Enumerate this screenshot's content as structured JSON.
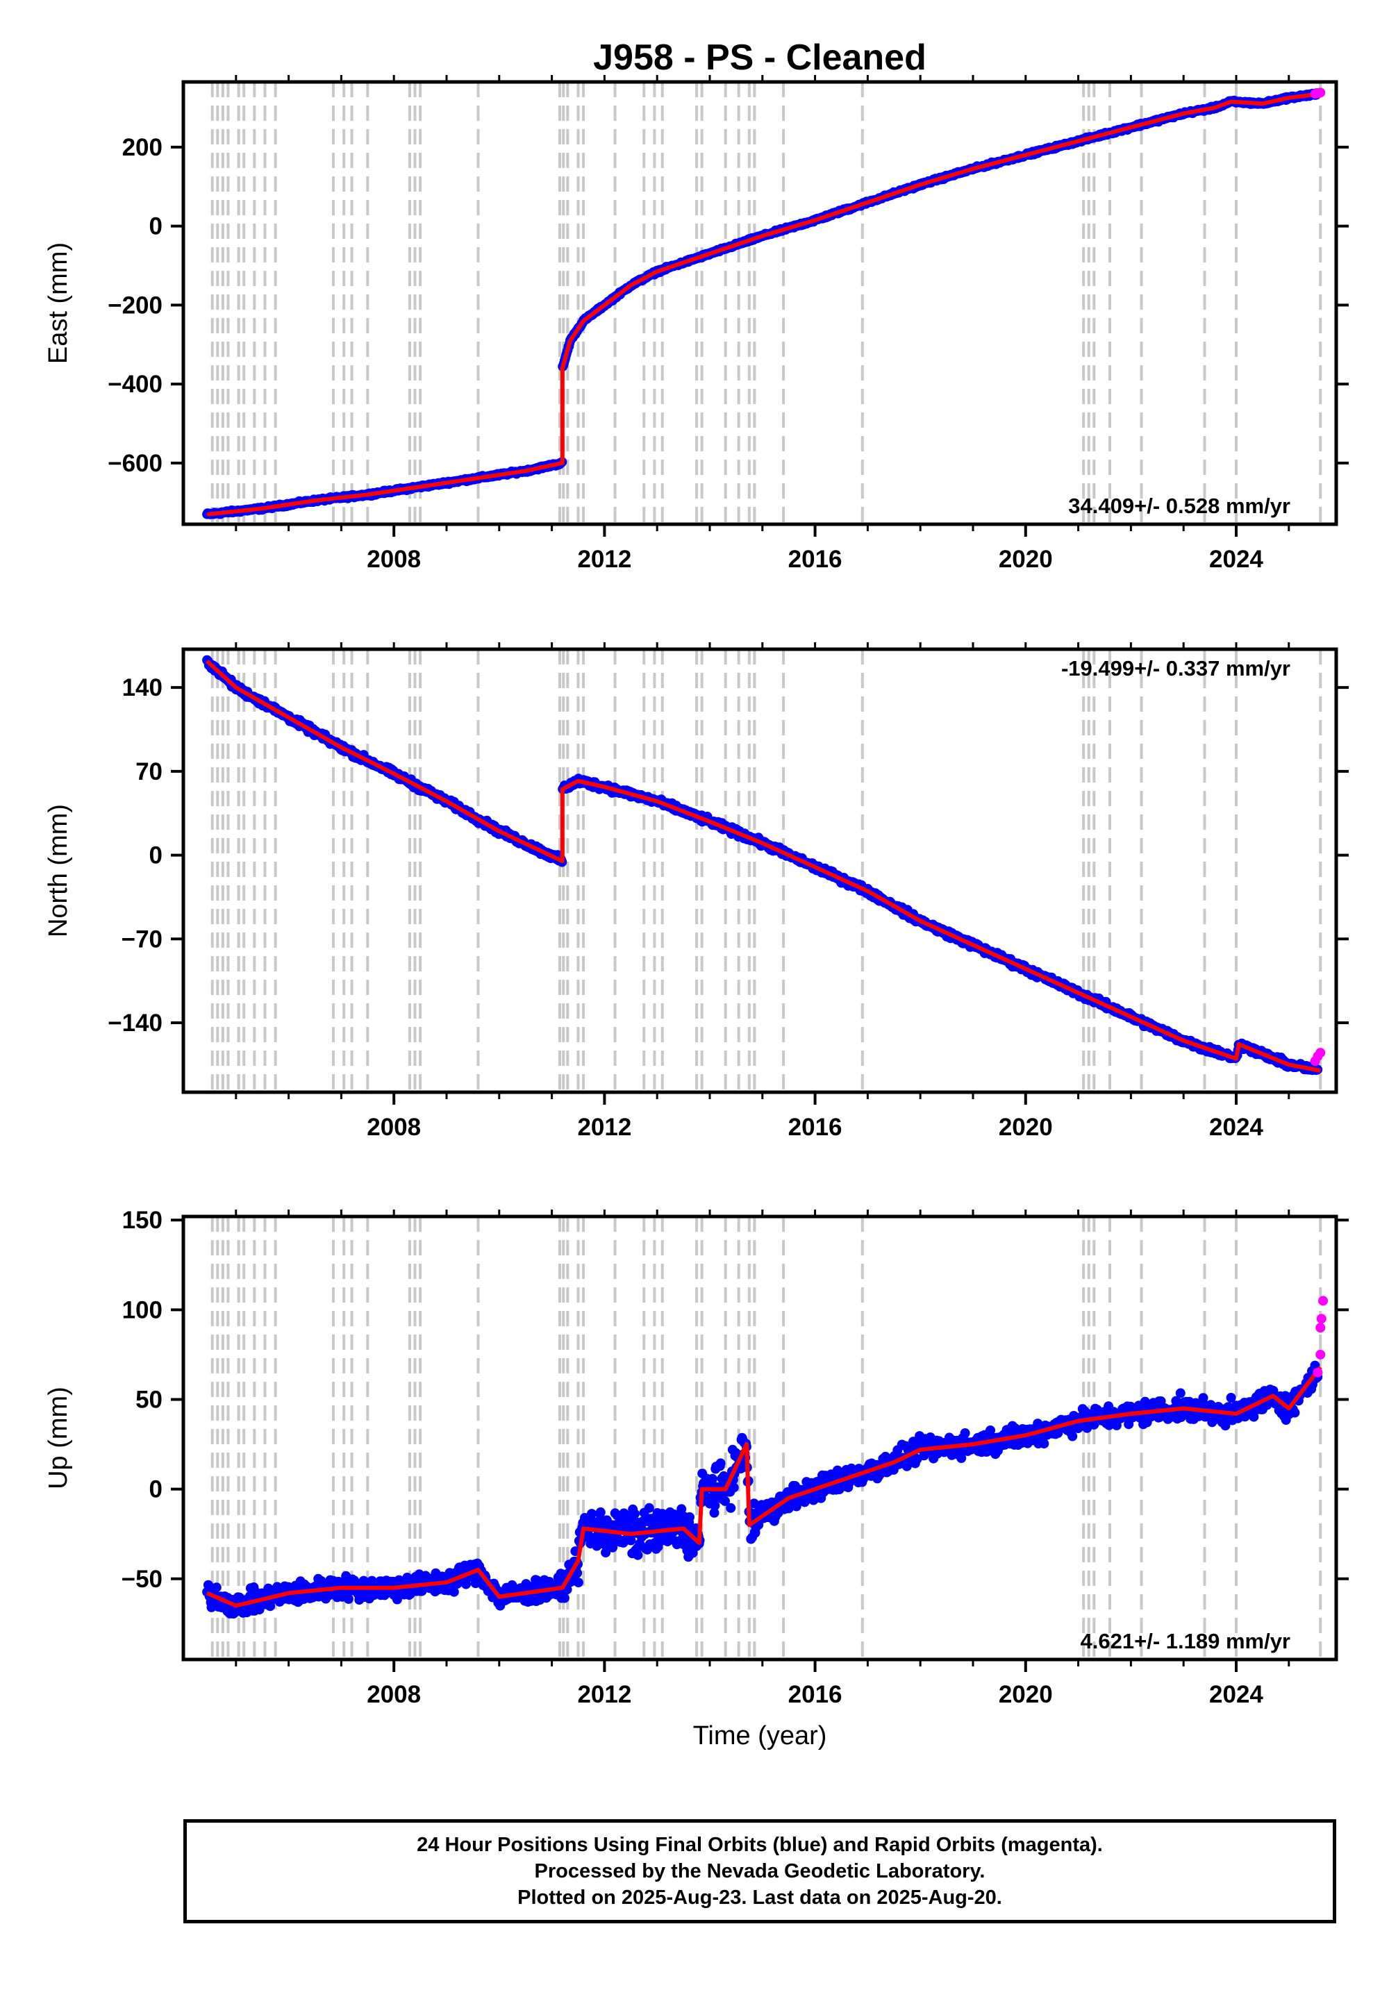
{
  "title": "J958  - PS - Cleaned",
  "xlabel": "Time (year)",
  "footer": {
    "line1": "24 Hour Positions Using Final Orbits (blue) and Rapid Orbits (magenta).",
    "line2": "Processed by the Nevada Geodetic Laboratory.",
    "line3": "Plotted on 2025-Aug-23. Last data on 2025-Aug-20."
  },
  "colors": {
    "final_orbits": "#0000ff",
    "rapid_orbits": "#ff00ff",
    "model_fit": "#ff0000",
    "event_lines": "#c8c8c8"
  },
  "chart_data": [
    {
      "type": "scatter",
      "panel": "east",
      "ylabel": "East (mm)",
      "xlim": [
        2004.0,
        2025.9
      ],
      "ylim": [
        -755,
        365
      ],
      "x_ticks": [
        2008,
        2012,
        2016,
        2020,
        2024
      ],
      "y_ticks": [
        -600,
        -400,
        -200,
        0,
        200
      ],
      "rate_text": "34.409+/- 0.528 mm/yr",
      "rate_position": "bottom-right",
      "grid": false,
      "fit": {
        "x": [
          2004.45,
          2005.5,
          2006.5,
          2007.5,
          2008.5,
          2009.5,
          2010.5,
          2011.2,
          2011.201,
          2011.35,
          2011.6,
          2012.0,
          2012.5,
          2013.0,
          2014.0,
          2015.0,
          2016.0,
          2017.0,
          2018.0,
          2019.0,
          2020.0,
          2021.0,
          2022.0,
          2023.0,
          2023.6,
          2023.9,
          2024.5,
          2025.0,
          2025.6
        ],
        "y": [
          -730,
          -715,
          -695,
          -680,
          -660,
          -640,
          -620,
          -600,
          -360,
          -290,
          -240,
          -200,
          -150,
          -115,
          -70,
          -25,
          15,
          60,
          105,
          145,
          180,
          215,
          250,
          285,
          300,
          315,
          310,
          325,
          335
        ]
      },
      "rapid_points": {
        "x": [
          2025.5,
          2025.55,
          2025.6
        ],
        "y": [
          335,
          336,
          338
        ]
      }
    },
    {
      "type": "scatter",
      "panel": "north",
      "ylabel": "North (mm)",
      "xlim": [
        2004.0,
        2025.9
      ],
      "ylim": [
        -198,
        172
      ],
      "x_ticks": [
        2008,
        2012,
        2016,
        2020,
        2024
      ],
      "y_ticks": [
        -140,
        -70,
        0,
        70,
        140
      ],
      "rate_text": "-19.499+/- 0.337 mm/yr",
      "rate_position": "top-right",
      "grid": false,
      "fit": {
        "x": [
          2004.45,
          2005.0,
          2006.0,
          2007.0,
          2008.0,
          2009.0,
          2010.0,
          2011.2,
          2011.201,
          2011.5,
          2012.0,
          2013.0,
          2014.0,
          2015.0,
          2016.0,
          2017.0,
          2018.0,
          2019.0,
          2020.0,
          2021.0,
          2022.0,
          2023.0,
          2024.0,
          2024.05,
          2025.0,
          2025.6
        ],
        "y": [
          162,
          140,
          115,
          90,
          68,
          45,
          20,
          -5,
          55,
          62,
          57,
          45,
          28,
          10,
          -10,
          -30,
          -55,
          -75,
          -95,
          -115,
          -135,
          -155,
          -170,
          -158,
          -175,
          -180
        ]
      },
      "rapid_points": {
        "x": [
          2025.5,
          2025.55,
          2025.6
        ],
        "y": [
          -172,
          -168,
          -165
        ]
      }
    },
    {
      "type": "scatter",
      "panel": "up",
      "ylabel": "Up (mm)",
      "xlim": [
        2004.0,
        2025.9
      ],
      "ylim": [
        -95,
        152
      ],
      "x_ticks": [
        2008,
        2012,
        2016,
        2020,
        2024
      ],
      "y_ticks": [
        -50,
        0,
        50,
        100,
        150
      ],
      "rate_text": "4.621+/- 1.189 mm/yr",
      "rate_position": "bottom-right",
      "grid": false,
      "fit": {
        "x": [
          2004.45,
          2005.0,
          2006.0,
          2007.0,
          2008.0,
          2009.0,
          2009.6,
          2010.0,
          2011.2,
          2011.5,
          2011.6,
          2012.5,
          2013.5,
          2013.8,
          2013.85,
          2014.3,
          2014.7,
          2014.75,
          2015.5,
          2016.5,
          2017.5,
          2018.0,
          2019.0,
          2020.0,
          2021.0,
          2022.0,
          2023.0,
          2024.0,
          2024.7,
          2025.0,
          2025.6
        ],
        "y": [
          -58,
          -65,
          -58,
          -55,
          -55,
          -52,
          -45,
          -60,
          -55,
          -40,
          -22,
          -25,
          -22,
          -30,
          0,
          0,
          25,
          -20,
          -5,
          5,
          15,
          22,
          25,
          30,
          38,
          42,
          45,
          42,
          52,
          45,
          68
        ]
      },
      "rapid_points": {
        "x": [
          2025.55,
          2025.6,
          2025.6,
          2025.62,
          2025.65
        ],
        "y": [
          65,
          75,
          90,
          95,
          105
        ]
      }
    }
  ],
  "event_line_years": [
    2004.55,
    2004.65,
    2004.75,
    2004.85,
    2005.05,
    2005.15,
    2005.35,
    2005.55,
    2005.75,
    2006.85,
    2007.05,
    2007.2,
    2007.5,
    2008.3,
    2008.4,
    2008.5,
    2009.6,
    2011.15,
    2011.22,
    2011.3,
    2011.5,
    2011.6,
    2012.2,
    2012.75,
    2012.95,
    2013.1,
    2013.75,
    2013.85,
    2014.3,
    2014.55,
    2014.75,
    2014.85,
    2015.4,
    2016.9,
    2021.1,
    2021.2,
    2021.3,
    2021.6,
    2022.2,
    2023.4,
    2024.0,
    2025.6
  ]
}
